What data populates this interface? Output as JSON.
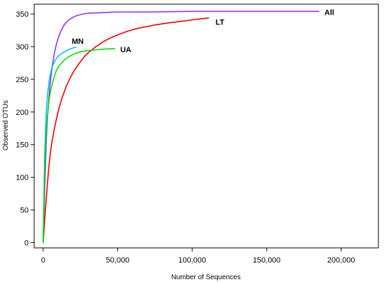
{
  "chart_data": {
    "type": "line",
    "xlabel": "Number of Sequences",
    "ylabel": "Observed OTUs",
    "xlim": [
      -6000,
      225000
    ],
    "ylim": [
      -8,
      365
    ],
    "xticks": [
      0,
      50000,
      100000,
      150000,
      200000
    ],
    "xtick_labels": [
      "0",
      "50,000",
      "100,000",
      "150,000",
      "200,000"
    ],
    "yticks": [
      0,
      50,
      100,
      150,
      200,
      250,
      300,
      350
    ],
    "ytick_labels": [
      "0",
      "50",
      "100",
      "150",
      "200",
      "250",
      "300",
      "350"
    ],
    "grid": false,
    "legend": "none",
    "series": [
      {
        "name": "All",
        "color": "#9b30ff",
        "x": [
          0,
          2000,
          4000,
          6000,
          8000,
          10000,
          12000,
          15000,
          20000,
          25000,
          30000,
          40000,
          50000,
          70000,
          100000,
          150000,
          185000
        ],
        "values": [
          0,
          150,
          225,
          268,
          295,
          312,
          324,
          336,
          345,
          349,
          351,
          352,
          353,
          353,
          354,
          354,
          354
        ]
      },
      {
        "name": "LT",
        "color": "#ee0000",
        "x": [
          0,
          2000,
          5000,
          10000,
          15000,
          20000,
          25000,
          30000,
          40000,
          50000,
          60000,
          70000,
          80000,
          90000,
          100000,
          111000
        ],
        "values": [
          0,
          65,
          140,
          200,
          236,
          260,
          277,
          290,
          307,
          318,
          326,
          331,
          335,
          338,
          341,
          344
        ]
      },
      {
        "name": "MN",
        "color": "#00bfff",
        "x": [
          0,
          1000,
          2000,
          3000,
          5000,
          7000,
          10000,
          15000,
          20000,
          22000
        ],
        "values": [
          0,
          130,
          195,
          228,
          260,
          274,
          285,
          293,
          298,
          299
        ]
      },
      {
        "name": "UA",
        "color": "#00dd00",
        "x": [
          0,
          1000,
          2000,
          4000,
          6000,
          8000,
          10000,
          15000,
          20000,
          25000,
          30000,
          35000,
          40000,
          48000
        ],
        "values": [
          0,
          105,
          165,
          218,
          242,
          258,
          268,
          281,
          288,
          292,
          294,
          295,
          296,
          297
        ]
      }
    ]
  }
}
